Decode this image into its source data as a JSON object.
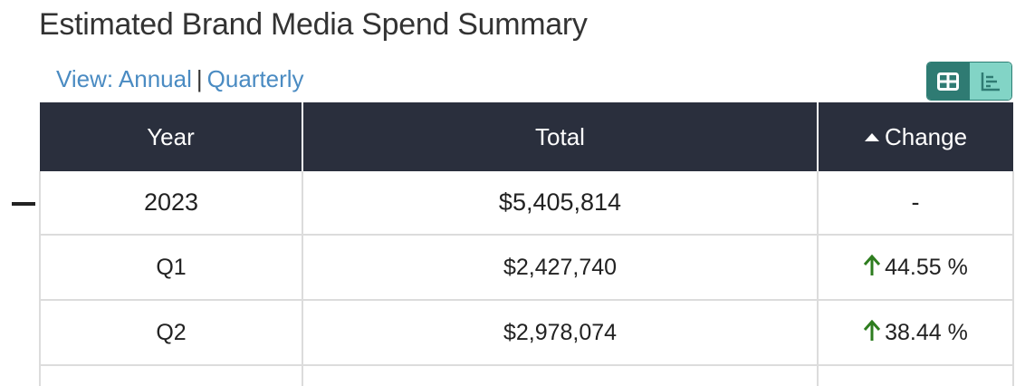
{
  "title": "Estimated Brand Media Spend Summary",
  "view": {
    "prefix": "View:",
    "annual": "Annual",
    "separator": "|",
    "quarterly": "Quarterly"
  },
  "toggle": {
    "table_icon": "table-icon",
    "chart_icon": "bar-chart-icon"
  },
  "table": {
    "columns": [
      "Year",
      "Total",
      "Change"
    ],
    "sort_icon": "caret-up-icon",
    "rows": [
      {
        "period": "2023",
        "total": "$5,405,814",
        "change": "-"
      },
      {
        "period": "Q1",
        "total": "$2,427,740",
        "change": "44.55 %"
      },
      {
        "period": "Q2",
        "total": "$2,978,074",
        "change": "38.44 %"
      }
    ]
  },
  "colors": {
    "header_bg": "#2a2f3d",
    "link": "#4a8bc2",
    "positive": "#2e7d1f",
    "toggle_active": "#2f7b73",
    "toggle_inactive": "#82d4c6"
  }
}
